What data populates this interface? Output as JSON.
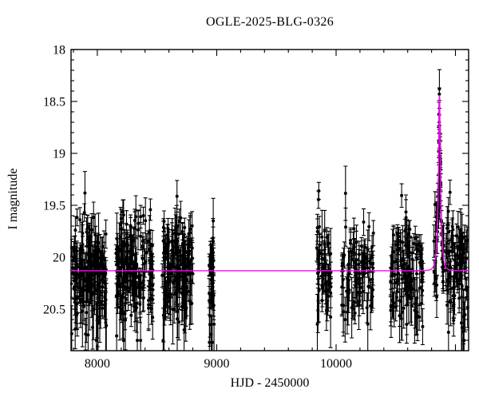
{
  "chart_data": {
    "type": "scatter",
    "title": "OGLE-2025-BLG-0326",
    "xlabel": "HJD - 2450000",
    "ylabel": "I magnitude",
    "xlim": [
      7780,
      11110
    ],
    "ylim": [
      18.0,
      20.9
    ],
    "y_inverted": true,
    "grid": false,
    "legend": "none",
    "x_axis": {
      "major_ticks": [
        8000,
        9000,
        10000,
        11000
      ],
      "labeled_ticks": [
        {
          "value": 8000,
          "label": "8000"
        },
        {
          "value": 9000,
          "label": "9000"
        },
        {
          "value": 10000,
          "label": "10000"
        }
      ],
      "minor_step": 200
    },
    "y_axis": {
      "major_ticks": [
        18.0,
        18.5,
        19.0,
        19.5,
        20.0,
        20.5
      ],
      "labeled_ticks": [
        {
          "value": 18.0,
          "label": "18"
        },
        {
          "value": 18.5,
          "label": "18.5"
        },
        {
          "value": 19.0,
          "label": "19"
        },
        {
          "value": 19.5,
          "label": "19.5"
        },
        {
          "value": 20.0,
          "label": "20"
        },
        {
          "value": 20.5,
          "label": "20.5"
        }
      ],
      "minor_step": 0.1
    },
    "colors": {
      "points": "#000000",
      "model_curve": "#ff00ff",
      "frame": "#000000",
      "background": "#ffffff",
      "text": "#000000"
    },
    "model": {
      "type": "paczynski_point_lens",
      "formula": "I(t) = I0 - 2.5*log10(A(u)), A=(u^2+2)/(u*sqrt(u^2+4)), u=sqrt(u0^2+((t-t0)/tE)^2)",
      "t0": 10866,
      "tE": 22,
      "u0": 0.215,
      "I0": 20.13,
      "baseline_mag": 20.13,
      "peak_mag": 18.44
    },
    "seasons": [
      {
        "name": "season-1",
        "t_start": 7782,
        "t_end": 8076,
        "n": 185,
        "mag_offset": 0
      },
      {
        "name": "season-2",
        "t_start": 8155,
        "t_end": 8466,
        "n": 175,
        "mag_offset": 0
      },
      {
        "name": "season-3",
        "t_start": 8541,
        "t_end": 8810,
        "n": 165,
        "mag_offset": 0
      },
      {
        "name": "season-4",
        "t_start": 8936,
        "t_end": 8980,
        "n": 35,
        "mag_offset": 0.05
      },
      {
        "name": "season-5",
        "t_start": 9839,
        "t_end": 9958,
        "n": 55,
        "mag_offset": -0.02
      },
      {
        "name": "season-6",
        "t_start": 10047,
        "t_end": 10314,
        "n": 95,
        "mag_offset": 0
      },
      {
        "name": "season-7",
        "t_start": 10450,
        "t_end": 10729,
        "n": 115,
        "mag_offset": 0
      },
      {
        "name": "season-8",
        "t_start": 10818,
        "t_end": 11105,
        "n": 135,
        "mag_offset": 0
      }
    ],
    "scatter_sigma": 0.26,
    "mag_clip": [
      18.38,
      20.82
    ],
    "event_points": [
      [
        10864.5,
        18.43,
        0.06
      ],
      [
        10863.8,
        18.7,
        0.07
      ],
      [
        10866.0,
        18.8,
        0.07
      ],
      [
        10863.0,
        18.89,
        0.08
      ],
      [
        10865.2,
        19.03,
        0.08
      ],
      [
        10867.0,
        19.11,
        0.09
      ],
      [
        10862.2,
        19.2,
        0.09
      ],
      [
        10864.0,
        19.3,
        0.1
      ],
      [
        10866.5,
        19.36,
        0.1
      ],
      [
        10861.0,
        19.46,
        0.11
      ],
      [
        10868.5,
        19.52,
        0.11
      ],
      [
        10859.5,
        19.6,
        0.12
      ]
    ],
    "rng_seed": 7
  }
}
